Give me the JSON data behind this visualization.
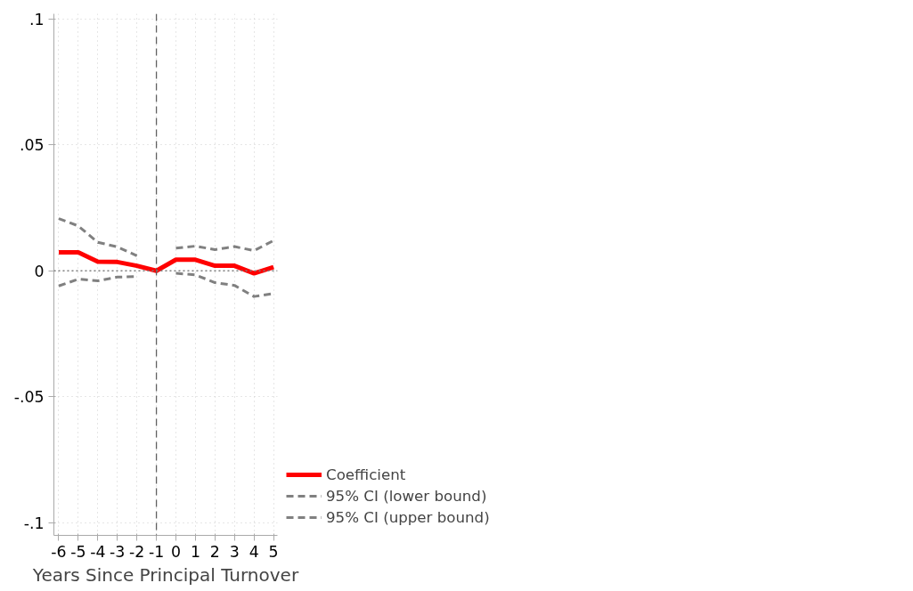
{
  "chart_data": {
    "type": "line",
    "xlabel": "Years Since Principal Turnover",
    "x": [
      -6,
      -5,
      -4,
      -3,
      -2,
      -1,
      0,
      1,
      2,
      3,
      4,
      5
    ],
    "series": [
      {
        "name": "Coefficient",
        "color": "#ff0000",
        "line_style": "solid",
        "values": [
          0.0073,
          0.0073,
          0.0036,
          0.0035,
          0.002,
          0,
          0.0044,
          0.0044,
          0.002,
          0.002,
          -0.001,
          0.0015
        ]
      },
      {
        "name": "95% CI (lower bound)",
        "color": "#808080",
        "line_style": "dashed",
        "values": [
          -0.006,
          -0.0033,
          -0.004,
          -0.0025,
          -0.0023,
          null,
          -0.001,
          -0.0016,
          -0.0047,
          -0.0058,
          -0.0102,
          -0.009
        ]
      },
      {
        "name": "95% CI (upper bound)",
        "color": "#808080",
        "line_style": "dashed",
        "values": [
          0.0207,
          0.0178,
          0.0113,
          0.0095,
          0.006,
          null,
          0.009,
          0.0098,
          0.0084,
          0.0096,
          0.008,
          0.012
        ]
      }
    ],
    "xlim": [
      -6.25,
      5.2
    ],
    "ylim": [
      -0.105,
      0.102
    ],
    "xticks": [
      -6,
      -5,
      -4,
      -3,
      -2,
      -1,
      0,
      1,
      2,
      3,
      4,
      5
    ],
    "yticks": [
      {
        "value": -0.1,
        "label": "-.1"
      },
      {
        "value": -0.05,
        "label": "-.05"
      },
      0,
      {
        "value": 0.05,
        "label": ".05"
      },
      {
        "value": 0.1,
        "label": ".1"
      }
    ],
    "ref_lines": [
      {
        "axis": "x",
        "value": -1,
        "color": "#606060",
        "line_style": "dashed"
      },
      {
        "axis": "y",
        "value": 0,
        "color": "#808080",
        "line_style": "dotted"
      }
    ],
    "grid": true,
    "legend": "bottom right"
  }
}
